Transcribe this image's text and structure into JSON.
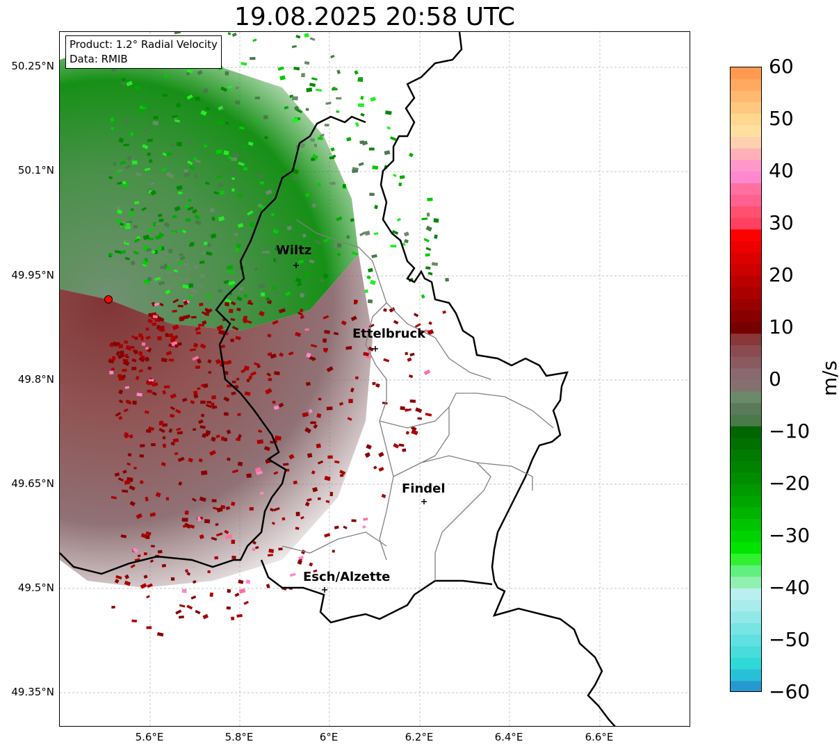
{
  "title": "19.08.2025 20:58 UTC",
  "info": {
    "product": "Product: 1.2° Radial Velocity",
    "source": "Data: RMIB"
  },
  "lat_labels": [
    "50.25°N",
    "50.1°N",
    "49.95°N",
    "49.8°N",
    "49.65°N",
    "49.5°N",
    "49.35°N"
  ],
  "lon_labels": [
    "5.6°E",
    "5.8°E",
    "6°E",
    "6.2°E",
    "6.4°E",
    "6.6°E"
  ],
  "cities": [
    "Wiltz",
    "Ettelbruck",
    "Findel",
    "Esch/Alzette"
  ],
  "colorbar": {
    "unit": "m/s",
    "ticks": [
      "60",
      "50",
      "40",
      "30",
      "20",
      "10",
      "0",
      "−10",
      "−20",
      "−30",
      "−40",
      "−50",
      "−60"
    ],
    "range": [
      -60,
      60
    ]
  },
  "colors": {
    "border": "#000000",
    "canton": "#808080",
    "radar_site": "#ff0000"
  }
}
